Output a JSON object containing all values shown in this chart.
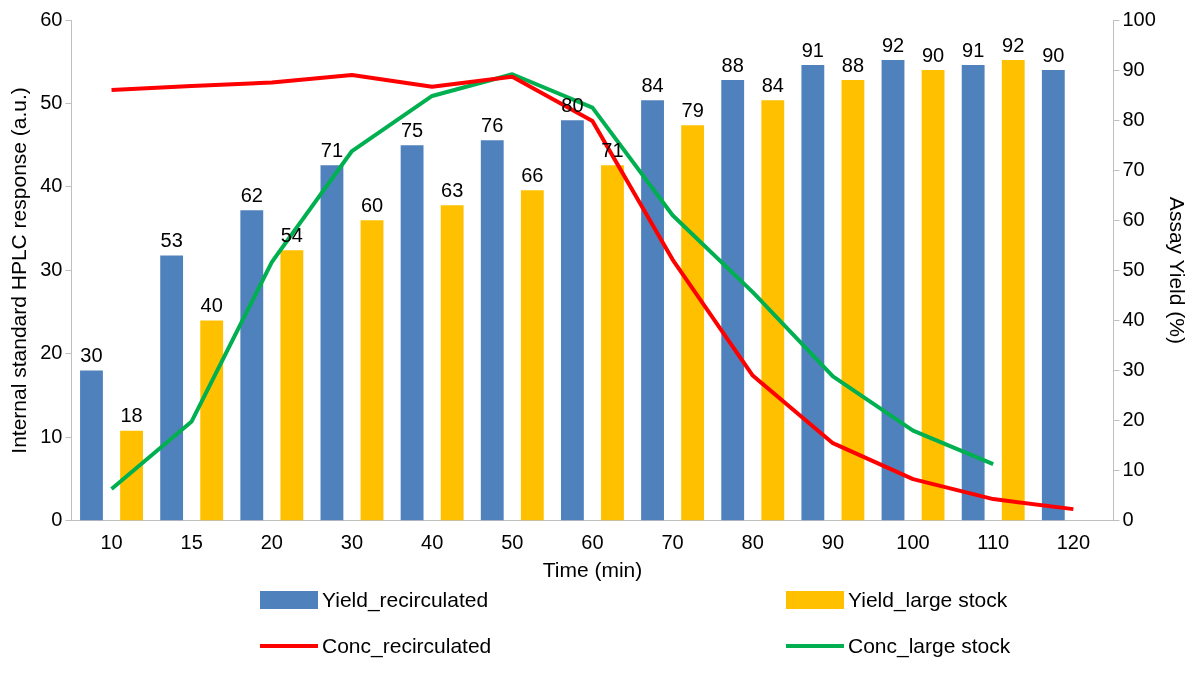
{
  "chart_data": {
    "type": "bar",
    "xlabel": "Time (min)",
    "ylabel": "Internal standard HPLC response (a.u.)",
    "y2label": "Assay Yield (%)",
    "categories": [
      "10",
      "15",
      "20",
      "30",
      "40",
      "50",
      "60",
      "70",
      "80",
      "90",
      "100",
      "110",
      "120"
    ],
    "series": [
      {
        "name": "Yield_recirculated",
        "axis": "y2",
        "color": "#4f81bd",
        "values": [
          30,
          53,
          62,
          71,
          75,
          76,
          80,
          84,
          88,
          91,
          92,
          91,
          90
        ],
        "value_labels": [
          "30",
          "53",
          "62",
          "71",
          "75",
          "76",
          "80",
          "84",
          "88",
          "91",
          "92",
          "91",
          "90"
        ]
      },
      {
        "name": "Yield_large stock",
        "axis": "y2",
        "color": "#ffc000",
        "values": [
          18,
          40,
          54,
          60,
          63,
          66,
          71,
          79,
          84,
          88,
          90,
          92,
          null
        ],
        "value_labels": [
          "18",
          "40",
          "54",
          "60",
          "63",
          "66",
          "71",
          "79",
          "84",
          "88",
          "90",
          "92",
          null
        ]
      },
      {
        "name": "Conc_recirculated",
        "type": "line",
        "color": "#ff0000",
        "values": [
          51.6,
          52.1,
          52.5,
          53.4,
          52,
          53.2,
          47.9,
          31.3,
          17.4,
          9.3,
          5,
          2.6,
          1.4
        ]
      },
      {
        "name": "Conc_large stock",
        "type": "line",
        "color": "#00b050",
        "values": [
          3.8,
          11.9,
          31,
          44.3,
          50.9,
          53.5,
          49.5,
          36.6,
          27.4,
          17.3,
          10.8,
          6.8,
          null
        ]
      }
    ],
    "ylim": [
      0,
      60
    ],
    "yticks": [
      0,
      10,
      20,
      30,
      40,
      50,
      60
    ],
    "y2lim": [
      0,
      100
    ],
    "y2ticks": [
      0,
      10,
      20,
      30,
      40,
      50,
      60,
      70,
      80,
      90,
      100
    ],
    "grid": false,
    "legend": "bottom",
    "marker": "none",
    "line_style": "solid"
  }
}
